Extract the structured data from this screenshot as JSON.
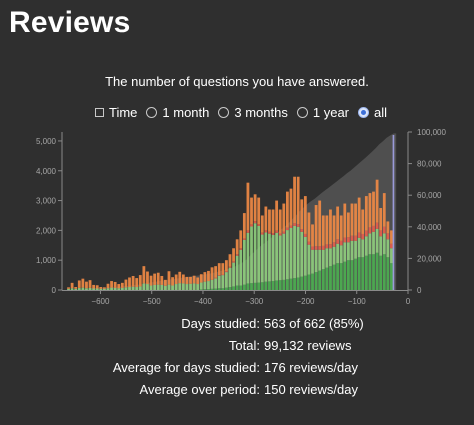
{
  "header": {
    "title": "Reviews"
  },
  "subtitle": "The number of questions you have answered.",
  "range": {
    "options": [
      {
        "label": "Time",
        "kind": "checkbox",
        "checked": false
      },
      {
        "label": "1 month",
        "kind": "radio",
        "checked": false
      },
      {
        "label": "3 months",
        "kind": "radio",
        "checked": false
      },
      {
        "label": "1 year",
        "kind": "radio",
        "checked": false
      },
      {
        "label": "all",
        "kind": "radio",
        "checked": true
      }
    ]
  },
  "stats": [
    {
      "label": "Days studied:",
      "value": "563 of 662 (85%)"
    },
    {
      "label": "Total:",
      "value": "99,132 reviews"
    },
    {
      "label": "Average for days studied:",
      "value": "176 reviews/day"
    },
    {
      "label": "Average over period:",
      "value": "150 reviews/day"
    }
  ],
  "chart_data": {
    "type": "bar",
    "x_ticks": [
      "-600",
      "-500",
      "-400",
      "-300",
      "-200",
      "-100",
      "0"
    ],
    "y_ticks": [
      "0",
      "1,000",
      "2,000",
      "3,000",
      "4,000",
      "5,000"
    ],
    "y2_ticks": [
      "0",
      "20,000",
      "40,000",
      "60,000",
      "80,000",
      "100,000"
    ],
    "xlim": [
      -675,
      0
    ],
    "ylim": [
      0,
      5300
    ],
    "y2lim": [
      0,
      100000
    ],
    "bin_days": 7,
    "series_colors": {
      "mature": "#4caf50",
      "young": "#8fce7e",
      "relearn": "#e8604c",
      "learn": "#f08a45",
      "cumulative": "#777777",
      "today": "#9a9ad9"
    },
    "bins": [
      {
        "x": -665,
        "mature": 0,
        "young": 40,
        "relearn": 0,
        "learn": 50
      },
      {
        "x": -658,
        "mature": 0,
        "young": 60,
        "relearn": 0,
        "learn": 180
      },
      {
        "x": -651,
        "mature": 0,
        "young": 40,
        "relearn": 0,
        "learn": 60
      },
      {
        "x": -644,
        "mature": 0,
        "young": 70,
        "relearn": 0,
        "learn": 250
      },
      {
        "x": -637,
        "mature": 0,
        "young": 80,
        "relearn": 0,
        "learn": 300
      },
      {
        "x": -630,
        "mature": 0,
        "young": 60,
        "relearn": 0,
        "learn": 220
      },
      {
        "x": -623,
        "mature": 0,
        "young": 70,
        "relearn": 0,
        "learn": 260
      },
      {
        "x": -616,
        "mature": 0,
        "young": 50,
        "relearn": 0,
        "learn": 120
      },
      {
        "x": -609,
        "mature": 0,
        "young": 50,
        "relearn": 0,
        "learn": 110
      },
      {
        "x": -602,
        "mature": 0,
        "young": 40,
        "relearn": 0,
        "learn": 60
      },
      {
        "x": -595,
        "mature": 0,
        "young": 40,
        "relearn": 0,
        "learn": 50
      },
      {
        "x": -588,
        "mature": 0,
        "young": 60,
        "relearn": 0,
        "learn": 150
      },
      {
        "x": -581,
        "mature": 0,
        "young": 80,
        "relearn": 0,
        "learn": 220
      },
      {
        "x": -574,
        "mature": 0,
        "young": 70,
        "relearn": 0,
        "learn": 200
      },
      {
        "x": -567,
        "mature": 0,
        "young": 60,
        "relearn": 0,
        "learn": 140
      },
      {
        "x": -560,
        "mature": 0,
        "young": 70,
        "relearn": 0,
        "learn": 170
      },
      {
        "x": -553,
        "mature": 0,
        "young": 90,
        "relearn": 0,
        "learn": 260
      },
      {
        "x": -546,
        "mature": 0,
        "young": 100,
        "relearn": 0,
        "learn": 320
      },
      {
        "x": -539,
        "mature": 0,
        "young": 110,
        "relearn": 0,
        "learn": 360
      },
      {
        "x": -532,
        "mature": 0,
        "young": 100,
        "relearn": 0,
        "learn": 300
      },
      {
        "x": -525,
        "mature": 0,
        "young": 120,
        "relearn": 0,
        "learn": 380
      },
      {
        "x": -518,
        "mature": 0,
        "young": 220,
        "relearn": 0,
        "learn": 580
      },
      {
        "x": -511,
        "mature": 0,
        "young": 200,
        "relearn": 0,
        "learn": 420
      },
      {
        "x": -504,
        "mature": 0,
        "young": 150,
        "relearn": 0,
        "learn": 330
      },
      {
        "x": -497,
        "mature": 0,
        "young": 170,
        "relearn": 0,
        "learn": 380
      },
      {
        "x": -490,
        "mature": 0,
        "young": 180,
        "relearn": 0,
        "learn": 400
      },
      {
        "x": -483,
        "mature": 0,
        "young": 170,
        "relearn": 0,
        "learn": 300
      },
      {
        "x": -476,
        "mature": 0,
        "young": 140,
        "relearn": 0,
        "learn": 200
      },
      {
        "x": -469,
        "mature": 0,
        "young": 180,
        "relearn": 0,
        "learn": 450
      },
      {
        "x": -462,
        "mature": 0,
        "young": 150,
        "relearn": 0,
        "learn": 280
      },
      {
        "x": -455,
        "mature": 0,
        "young": 200,
        "relearn": 0,
        "learn": 320
      },
      {
        "x": -448,
        "mature": 0,
        "young": 230,
        "relearn": 0,
        "learn": 380
      },
      {
        "x": -441,
        "mature": 0,
        "young": 220,
        "relearn": 0,
        "learn": 300
      },
      {
        "x": -434,
        "mature": 0,
        "young": 200,
        "relearn": 0,
        "learn": 240
      },
      {
        "x": -427,
        "mature": 0,
        "young": 210,
        "relearn": 0,
        "learn": 230
      },
      {
        "x": -420,
        "mature": 0,
        "young": 220,
        "relearn": 0,
        "learn": 260
      },
      {
        "x": -413,
        "mature": 0,
        "young": 200,
        "relearn": 0,
        "learn": 220
      },
      {
        "x": -406,
        "mature": 20,
        "young": 230,
        "relearn": 0,
        "learn": 280
      },
      {
        "x": -399,
        "mature": 30,
        "young": 250,
        "relearn": 0,
        "learn": 320
      },
      {
        "x": -392,
        "mature": 30,
        "young": 270,
        "relearn": 0,
        "learn": 340
      },
      {
        "x": -385,
        "mature": 40,
        "young": 300,
        "relearn": 0,
        "learn": 420
      },
      {
        "x": -378,
        "mature": 50,
        "young": 340,
        "relearn": 20,
        "learn": 390
      },
      {
        "x": -371,
        "mature": 60,
        "young": 420,
        "relearn": 20,
        "learn": 400
      },
      {
        "x": -364,
        "mature": 60,
        "young": 440,
        "relearn": 20,
        "learn": 380
      },
      {
        "x": -357,
        "mature": 80,
        "young": 520,
        "relearn": 30,
        "learn": 370
      },
      {
        "x": -350,
        "mature": 100,
        "young": 650,
        "relearn": 30,
        "learn": 420
      },
      {
        "x": -343,
        "mature": 120,
        "young": 800,
        "relearn": 40,
        "learn": 440
      },
      {
        "x": -336,
        "mature": 150,
        "young": 1000,
        "relearn": 50,
        "learn": 500
      },
      {
        "x": -329,
        "mature": 150,
        "young": 1200,
        "relearn": 50,
        "learn": 600
      },
      {
        "x": -322,
        "mature": 180,
        "young": 1500,
        "relearn": 50,
        "learn": 850
      },
      {
        "x": -315,
        "mature": 220,
        "young": 1700,
        "relearn": 80,
        "learn": 1600
      },
      {
        "x": -308,
        "mature": 230,
        "young": 1900,
        "relearn": 70,
        "learn": 900
      },
      {
        "x": -301,
        "mature": 240,
        "young": 2000,
        "relearn": 70,
        "learn": 900
      },
      {
        "x": -294,
        "mature": 250,
        "young": 1900,
        "relearn": 60,
        "learn": 890
      },
      {
        "x": -287,
        "mature": 260,
        "young": 1600,
        "relearn": 60,
        "learn": 580
      },
      {
        "x": -280,
        "mature": 280,
        "young": 1650,
        "relearn": 70,
        "learn": 800
      },
      {
        "x": -273,
        "mature": 290,
        "young": 1600,
        "relearn": 60,
        "learn": 750
      },
      {
        "x": -266,
        "mature": 300,
        "young": 1550,
        "relearn": 60,
        "learn": 790
      },
      {
        "x": -259,
        "mature": 320,
        "young": 1600,
        "relearn": 70,
        "learn": 1010
      },
      {
        "x": -252,
        "mature": 330,
        "young": 1500,
        "relearn": 60,
        "learn": 810
      },
      {
        "x": -245,
        "mature": 340,
        "young": 1550,
        "relearn": 70,
        "learn": 940
      },
      {
        "x": -238,
        "mature": 360,
        "young": 1650,
        "relearn": 80,
        "learn": 1210
      },
      {
        "x": -231,
        "mature": 380,
        "young": 1700,
        "relearn": 80,
        "learn": 1240
      },
      {
        "x": -224,
        "mature": 400,
        "young": 1750,
        "relearn": 90,
        "learn": 1560
      },
      {
        "x": -217,
        "mature": 420,
        "young": 1700,
        "relearn": 90,
        "learn": 1590
      },
      {
        "x": -210,
        "mature": 450,
        "young": 1500,
        "relearn": 90,
        "learn": 1000
      },
      {
        "x": -203,
        "mature": 480,
        "young": 1300,
        "relearn": 100,
        "learn": 1270
      },
      {
        "x": -196,
        "mature": 520,
        "young": 1000,
        "relearn": 100,
        "learn": 980
      },
      {
        "x": -189,
        "mature": 550,
        "young": 800,
        "relearn": 110,
        "learn": 740
      },
      {
        "x": -182,
        "mature": 600,
        "young": 750,
        "relearn": 120,
        "learn": 1380
      },
      {
        "x": -175,
        "mature": 650,
        "young": 700,
        "relearn": 120,
        "learn": 1530
      },
      {
        "x": -168,
        "mature": 700,
        "young": 650,
        "relearn": 130,
        "learn": 1020
      },
      {
        "x": -161,
        "mature": 750,
        "young": 650,
        "relearn": 130,
        "learn": 970
      },
      {
        "x": -154,
        "mature": 800,
        "young": 600,
        "relearn": 140,
        "learn": 1160
      },
      {
        "x": -147,
        "mature": 850,
        "young": 600,
        "relearn": 150,
        "learn": 900
      },
      {
        "x": -140,
        "mature": 900,
        "young": 650,
        "relearn": 150,
        "learn": 1100
      },
      {
        "x": -133,
        "mature": 900,
        "young": 600,
        "relearn": 150,
        "learn": 850
      },
      {
        "x": -126,
        "mature": 950,
        "young": 650,
        "relearn": 160,
        "learn": 1140
      },
      {
        "x": -119,
        "mature": 1000,
        "young": 600,
        "relearn": 170,
        "learn": 830
      },
      {
        "x": -112,
        "mature": 1000,
        "young": 650,
        "relearn": 170,
        "learn": 1080
      },
      {
        "x": -105,
        "mature": 1050,
        "young": 600,
        "relearn": 170,
        "learn": 1080
      },
      {
        "x": -98,
        "mature": 1100,
        "young": 650,
        "relearn": 180,
        "learn": 1170
      },
      {
        "x": -91,
        "mature": 1100,
        "young": 600,
        "relearn": 180,
        "learn": 820
      },
      {
        "x": -84,
        "mature": 1150,
        "young": 650,
        "relearn": 190,
        "learn": 1160
      },
      {
        "x": -77,
        "mature": 1200,
        "young": 700,
        "relearn": 200,
        "learn": 1150
      },
      {
        "x": -70,
        "mature": 1200,
        "young": 750,
        "relearn": 200,
        "learn": 1150
      },
      {
        "x": -63,
        "mature": 1250,
        "young": 800,
        "relearn": 210,
        "learn": 1440
      },
      {
        "x": -56,
        "mature": 1150,
        "young": 650,
        "relearn": 200,
        "learn": 750
      },
      {
        "x": -49,
        "mature": 1200,
        "young": 700,
        "relearn": 220,
        "learn": 1130
      },
      {
        "x": -42,
        "mature": 1100,
        "young": 600,
        "relearn": 200,
        "learn": 400
      },
      {
        "x": -35,
        "mature": 900,
        "young": 500,
        "relearn": 150,
        "learn": 450
      }
    ],
    "today_bar": {
      "x": -30,
      "value": 5200
    },
    "cumulative_max": 99132
  }
}
